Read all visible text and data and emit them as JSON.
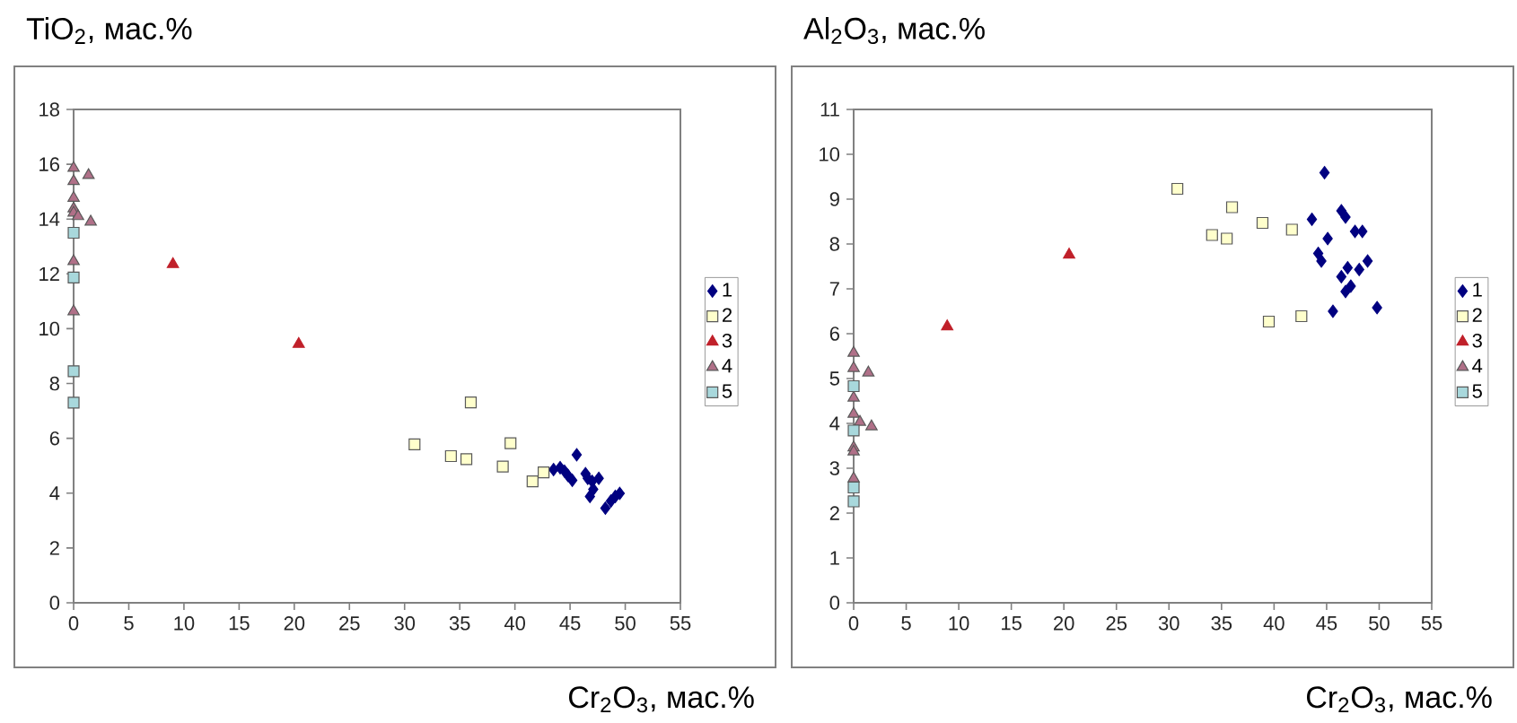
{
  "chart_data": [
    {
      "type": "scatter",
      "ylabel": "TiO$_{2}$, мас.%",
      "xlabel": "Cr$_{2}$O$_{3}$, мас.%",
      "xlim": [
        0,
        55
      ],
      "ylim": [
        0,
        18
      ],
      "xticks": [
        0,
        5,
        10,
        15,
        20,
        25,
        30,
        35,
        40,
        45,
        50,
        55
      ],
      "yticks": [
        0,
        2,
        4,
        6,
        8,
        10,
        12,
        14,
        16,
        18
      ],
      "legend": "right",
      "series": [
        {
          "name": "1",
          "color": "#000080",
          "marker": "diamond",
          "x": [
            45.6,
            43.5,
            44.1,
            44.5,
            44.8,
            45.2,
            46.4,
            46.6,
            47.0,
            47.6,
            47.1,
            46.8,
            48.2,
            48.7,
            49.1,
            49.5
          ],
          "values": [
            5.4,
            4.86,
            4.93,
            4.8,
            4.65,
            4.47,
            4.71,
            4.54,
            4.43,
            4.54,
            4.14,
            3.88,
            3.45,
            3.71,
            3.88,
            3.99
          ]
        },
        {
          "name": "2",
          "color": "#ffffcc",
          "marker": "square",
          "x": [
            30.9,
            36.0,
            34.2,
            35.6,
            39.6,
            38.9,
            41.6,
            42.6
          ],
          "values": [
            5.78,
            7.31,
            5.35,
            5.24,
            5.82,
            4.97,
            4.43,
            4.76
          ]
        },
        {
          "name": "3",
          "color": "#c0202a",
          "marker": "triangle",
          "x": [
            9.0,
            20.4
          ],
          "values": [
            12.35,
            9.44
          ]
        },
        {
          "name": "4",
          "color": "#b07088",
          "marker": "triangle",
          "x": [
            0,
            0,
            0,
            0,
            0,
            1.35,
            1.55,
            0,
            0,
            0.4
          ],
          "values": [
            15.86,
            15.38,
            14.77,
            14.38,
            14.23,
            15.6,
            13.9,
            12.46,
            10.63,
            14.1
          ]
        },
        {
          "name": "5",
          "color": "#a8d8dc",
          "marker": "square",
          "x": [
            0,
            0,
            0,
            0
          ],
          "values": [
            13.5,
            11.87,
            8.45,
            7.3
          ]
        }
      ]
    },
    {
      "type": "scatter",
      "ylabel": "Al$_{2}$O$_{3}$, мас.%",
      "xlabel": "Cr$_{2}$O$_{3}$, мас.%",
      "xlim": [
        0,
        55
      ],
      "ylim": [
        0,
        11
      ],
      "xticks": [
        0,
        5,
        10,
        15,
        20,
        25,
        30,
        35,
        40,
        45,
        50,
        55
      ],
      "yticks": [
        0,
        1,
        2,
        3,
        4,
        5,
        6,
        7,
        8,
        9,
        10,
        11
      ],
      "legend": "right",
      "series": [
        {
          "name": "1",
          "color": "#000080",
          "marker": "diamond",
          "x": [
            44.8,
            43.6,
            46.4,
            46.8,
            47.7,
            48.4,
            45.1,
            44.2,
            44.5,
            47.0,
            48.1,
            48.9,
            46.4,
            47.3,
            46.8,
            45.6,
            49.8
          ],
          "values": [
            9.59,
            8.55,
            8.74,
            8.6,
            8.28,
            8.28,
            8.12,
            7.79,
            7.62,
            7.47,
            7.43,
            7.62,
            7.27,
            7.06,
            6.94,
            6.5,
            6.58
          ]
        },
        {
          "name": "2",
          "color": "#ffffcc",
          "marker": "square",
          "x": [
            30.8,
            36.0,
            34.1,
            35.5,
            38.9,
            41.7,
            39.5,
            42.6
          ],
          "values": [
            9.23,
            8.82,
            8.2,
            8.12,
            8.47,
            8.32,
            6.27,
            6.39
          ]
        },
        {
          "name": "3",
          "color": "#c0202a",
          "marker": "triangle",
          "x": [
            8.9,
            20.5
          ],
          "values": [
            6.16,
            7.76
          ]
        },
        {
          "name": "4",
          "color": "#b07088",
          "marker": "triangle",
          "x": [
            0,
            0,
            1.4,
            0,
            0,
            0.6,
            1.7,
            0,
            0,
            0
          ],
          "values": [
            5.57,
            5.23,
            5.13,
            4.57,
            4.21,
            4.03,
            3.93,
            3.46,
            3.37,
            2.77
          ]
        },
        {
          "name": "5",
          "color": "#a8d8dc",
          "marker": "square",
          "x": [
            0,
            0,
            0,
            0
          ],
          "values": [
            4.83,
            3.84,
            2.57,
            2.26
          ]
        }
      ]
    }
  ]
}
